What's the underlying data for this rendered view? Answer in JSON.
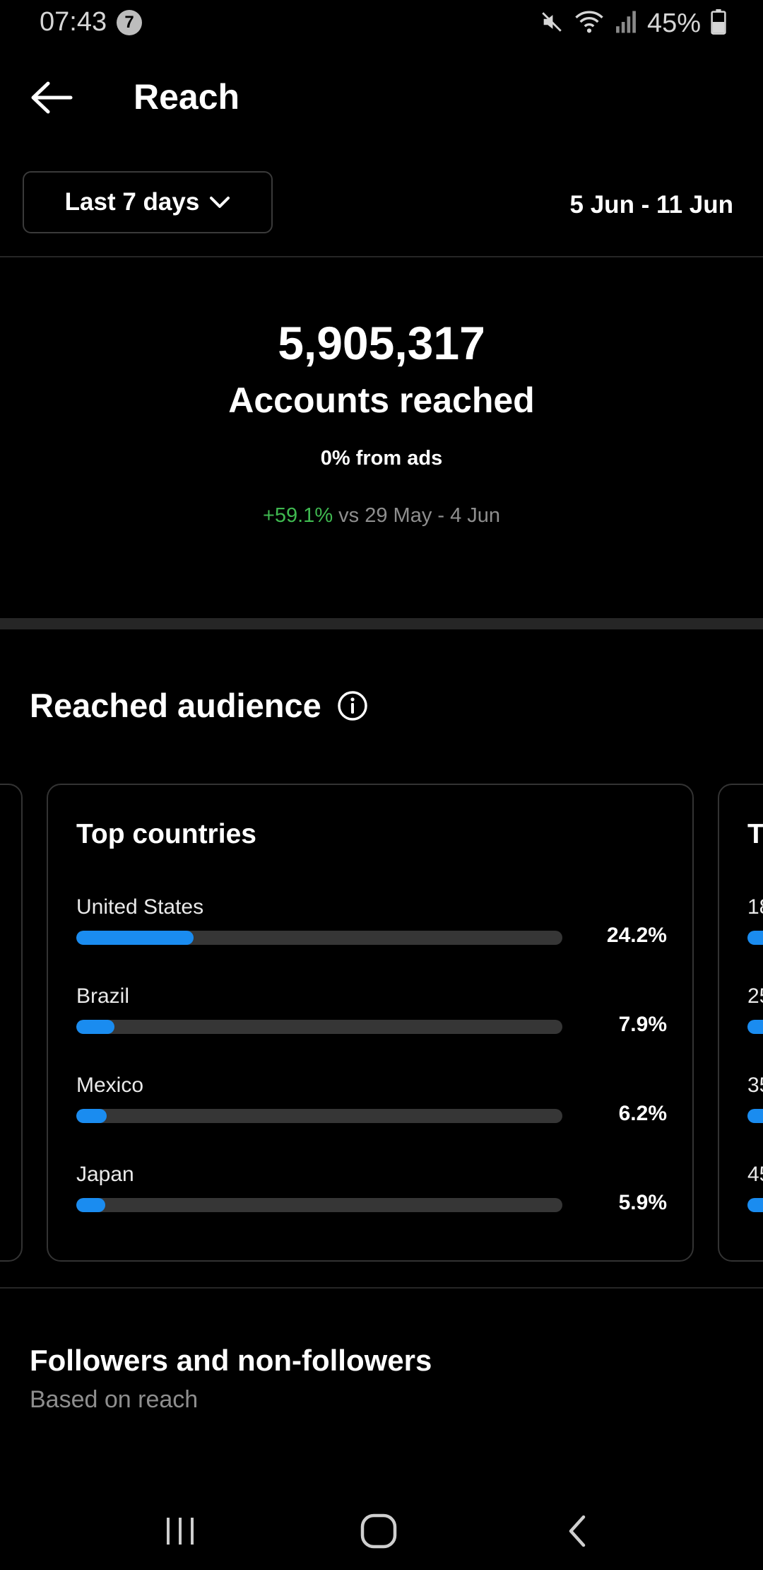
{
  "status_bar": {
    "time": "07:43",
    "notification_count": "7",
    "battery": "45%",
    "icons": [
      "mute-icon",
      "wifi-icon",
      "signal-icon",
      "battery-icon"
    ]
  },
  "header": {
    "title": "Reach",
    "back_icon": "arrow-left-icon"
  },
  "period": {
    "selected": "Last 7 days",
    "date_range": "5 Jun - 11 Jun"
  },
  "summary": {
    "accounts_reached": "5,905,317",
    "label": "Accounts reached",
    "ads_share": "0% from ads",
    "change": "+59.1%",
    "compare_text": " vs 29 May - 4 Jun"
  },
  "reached_audience": {
    "title": "Reached audience",
    "top_countries": {
      "title": "Top countries",
      "items": [
        {
          "country": "United States",
          "value": "24.2%",
          "fraction": 0.242
        },
        {
          "country": "Brazil",
          "value": "7.9%",
          "fraction": 0.079
        },
        {
          "country": "Mexico",
          "value": "6.2%",
          "fraction": 0.062
        },
        {
          "country": "Japan",
          "value": "5.9%",
          "fraction": 0.059
        }
      ]
    },
    "next_card_peek": {
      "title": "T",
      "labels": [
        "18",
        "25",
        "35",
        "45"
      ]
    }
  },
  "followers": {
    "title": "Followers and non-followers",
    "subtitle": "Based on reach"
  },
  "colors": {
    "background": "#000000",
    "accent_bar": "#1a8cf0",
    "positive": "#3fb950",
    "muted_text": "#8e8e8e"
  }
}
